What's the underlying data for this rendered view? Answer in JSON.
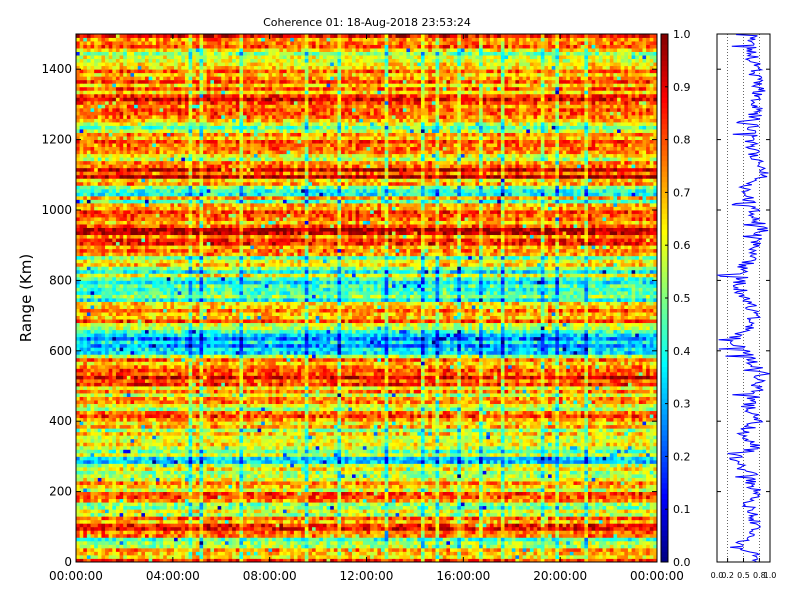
{
  "chart_data": {
    "type": "heatmap",
    "title": "Coherence 01: 18-Aug-2018 23:53:24",
    "ylabel": "Range (Km)",
    "xlabel": "",
    "x_ticks": [
      "00:00:00",
      "04:00:00",
      "08:00:00",
      "12:00:00",
      "16:00:00",
      "20:00:00",
      "00:00:00"
    ],
    "x_range_hours": [
      0,
      24
    ],
    "y_ticks": [
      0,
      200,
      400,
      600,
      800,
      1000,
      1200,
      1400
    ],
    "y_range_km": [
      0,
      1500
    ],
    "value_range": [
      0.0,
      1.0
    ],
    "colormap": "jet",
    "colorbar_ticks": [
      "0.0",
      "0.1",
      "0.2",
      "0.3",
      "0.4",
      "0.5",
      "0.6",
      "0.7",
      "0.8",
      "0.9",
      "1.0"
    ],
    "grid": false,
    "range_profile_coherence": [
      [
        0,
        0.82
      ],
      [
        50,
        0.45
      ],
      [
        100,
        0.8
      ],
      [
        150,
        0.58
      ],
      [
        200,
        0.72
      ],
      [
        250,
        0.62
      ],
      [
        290,
        0.32
      ],
      [
        330,
        0.75
      ],
      [
        370,
        0.48
      ],
      [
        400,
        0.78
      ],
      [
        440,
        0.58
      ],
      [
        480,
        0.72
      ],
      [
        540,
        0.88
      ],
      [
        580,
        0.6
      ],
      [
        630,
        0.3
      ],
      [
        680,
        0.72
      ],
      [
        730,
        0.62
      ],
      [
        780,
        0.4
      ],
      [
        840,
        0.52
      ],
      [
        880,
        0.7
      ],
      [
        940,
        0.85
      ],
      [
        1000,
        0.7
      ],
      [
        1060,
        0.48
      ],
      [
        1100,
        0.88
      ],
      [
        1160,
        0.68
      ],
      [
        1220,
        0.62
      ],
      [
        1280,
        0.74
      ],
      [
        1340,
        0.78
      ],
      [
        1400,
        0.72
      ],
      [
        1460,
        0.62
      ],
      [
        1500,
        0.8
      ]
    ],
    "range_profile_ticks": [
      "0.0",
      "0.2",
      "0.5",
      "0.8",
      "1.0"
    ]
  }
}
